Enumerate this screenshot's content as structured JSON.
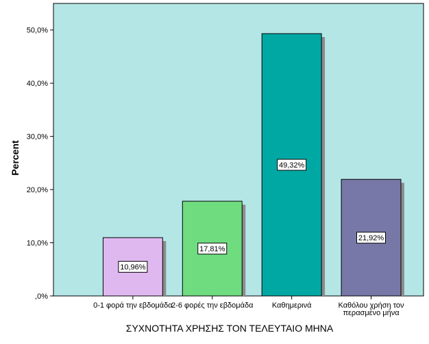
{
  "chart_data": {
    "type": "bar",
    "categories": [
      [
        "0-1 φορά την εβδομάδα"
      ],
      [
        "2-6 φορές την εβδομάδα"
      ],
      [
        "Καθημερινά"
      ],
      [
        "Καθόλου χρήση τον",
        "περασμένο μήνα"
      ]
    ],
    "values": [
      10.96,
      17.81,
      49.32,
      21.92
    ],
    "data_labels": [
      "10,96%",
      "17,81%",
      "49,32%",
      "21,92%"
    ],
    "bar_colors": [
      "#e0b8f0",
      "#70dc80",
      "#00a8a4",
      "#7878a8"
    ],
    "title": "",
    "xlabel": "ΣΥΧΝΟΤΗΤΑ ΧΡΗΣΗΣ ΤΟΝ ΤΕΛΕΥΤΑΙΟ ΜΗΝΑ",
    "ylabel": "Percent",
    "ylim": [
      0,
      55
    ],
    "yticks": [
      0,
      10,
      20,
      30,
      40,
      50
    ],
    "ytick_labels": [
      ",0%",
      "10,0%",
      "20,0%",
      "30,0%",
      "40,0%",
      "50,0%"
    ],
    "grid": false,
    "legend": "none",
    "plot_background": "#b4e6e6"
  }
}
